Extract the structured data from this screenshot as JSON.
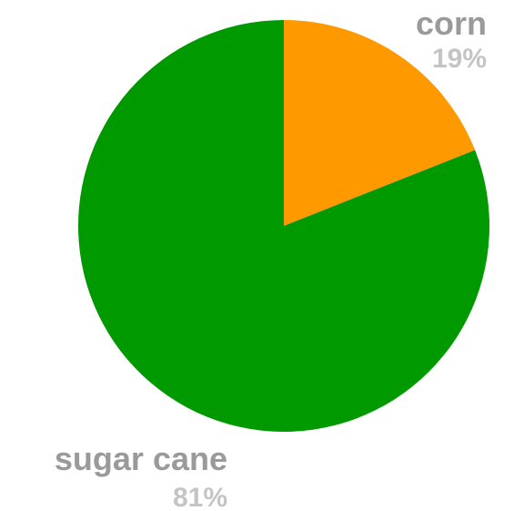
{
  "chart_data": {
    "type": "pie",
    "slices": [
      {
        "label": "corn",
        "value": 19,
        "percent_label": "19%",
        "color": "#ff9900"
      },
      {
        "label": "sugar cane",
        "value": 81,
        "percent_label": "81%",
        "color": "#009900"
      }
    ],
    "start_angle_deg": 0,
    "direction": "clockwise",
    "legend": "none"
  }
}
